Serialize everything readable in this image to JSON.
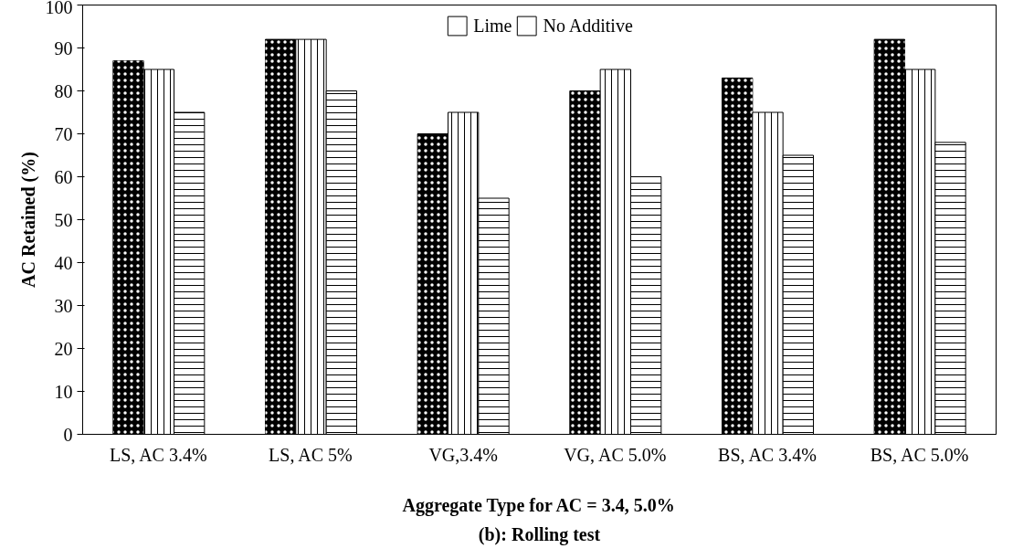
{
  "chart_data": {
    "type": "bar",
    "xlabel": "Aggregate Type for AC = 3.4, 5.0%",
    "ylabel": "AC Retained (%)",
    "annotations": [
      "(b): Rolling test"
    ],
    "categories": [
      "LS, AC 3.4%",
      "LS, AC 5%",
      "VG,3.4%",
      "VG, AC 5.0%",
      "BS, AC 3.4%",
      "BS, AC 5.0%"
    ],
    "series": [
      {
        "color": "#000000",
        "values": [
          87,
          92,
          70,
          80,
          83,
          92
        ]
      },
      {
        "name": "Lime",
        "color": "#ffffff",
        "values": [
          85,
          92,
          75,
          85,
          75,
          85
        ]
      },
      {
        "name": "No Additive",
        "color": "#ffffff",
        "values": [
          75,
          80,
          55,
          60,
          65,
          68
        ]
      }
    ],
    "ylim": [
      0,
      100
    ],
    "yticks": [
      0,
      10,
      20,
      30,
      40,
      50,
      60,
      70,
      80,
      90,
      100
    ],
    "grid": false,
    "legend": "top"
  }
}
